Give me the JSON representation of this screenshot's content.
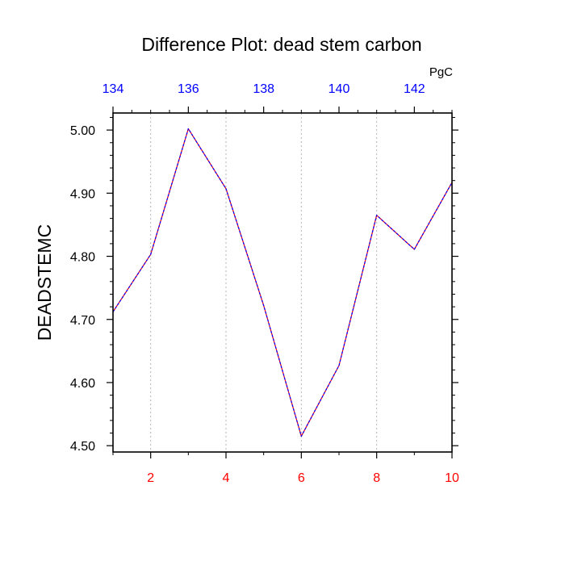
{
  "chart_data": {
    "type": "line",
    "title": "Difference Plot: dead stem carbon",
    "ylabel": "DEADSTEMC",
    "units": "PgC",
    "x": [
      1,
      2,
      3,
      4,
      5,
      6,
      7,
      8,
      9,
      10
    ],
    "series": [
      {
        "values": [
          4.712,
          4.803,
          5.002,
          4.907,
          4.722,
          4.515,
          4.627,
          4.865,
          4.811,
          4.917
        ],
        "color": "#0000ff",
        "dash_color": "#ff0000",
        "style": "dashed"
      }
    ],
    "xlim": [
      1,
      10
    ],
    "ylim": [
      4.49,
      5.027
    ],
    "xticks": [
      2,
      4,
      6,
      8,
      10
    ],
    "xtick_labels": [
      "2",
      "4",
      "6",
      "8",
      "10"
    ],
    "xtick_color": "#ff0000",
    "top_axis_range": [
      134,
      143
    ],
    "top_ticks": [
      134,
      136,
      138,
      140,
      142
    ],
    "top_tick_labels": [
      "134",
      "136",
      "138",
      "140",
      "142"
    ],
    "top_tick_color": "#0000ff",
    "yticks": [
      4.5,
      4.6,
      4.7,
      4.8,
      4.9,
      5.0
    ],
    "ytick_labels": [
      "4.50",
      "4.60",
      "4.70",
      "4.80",
      "4.90",
      "5.00"
    ],
    "grid": "vertical dotted at major x ticks",
    "legend": "none"
  }
}
